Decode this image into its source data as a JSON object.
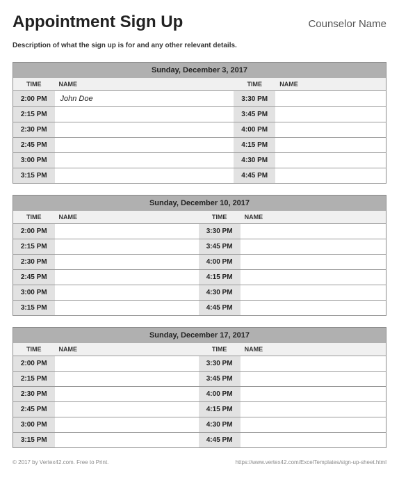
{
  "title": "Appointment Sign Up",
  "counselor": "Counselor Name",
  "description": "Description of what the sign up is for and any other relevant details.",
  "column_labels": {
    "time": "TIME",
    "name": "NAME"
  },
  "days": [
    {
      "date": "Sunday, December 3, 2017",
      "left": [
        {
          "time": "2:00 PM",
          "name": "John Doe"
        },
        {
          "time": "2:15 PM",
          "name": ""
        },
        {
          "time": "2:30 PM",
          "name": ""
        },
        {
          "time": "2:45 PM",
          "name": ""
        },
        {
          "time": "3:00 PM",
          "name": ""
        },
        {
          "time": "3:15 PM",
          "name": ""
        }
      ],
      "right": [
        {
          "time": "3:30 PM",
          "name": ""
        },
        {
          "time": "3:45 PM",
          "name": ""
        },
        {
          "time": "4:00 PM",
          "name": ""
        },
        {
          "time": "4:15 PM",
          "name": ""
        },
        {
          "time": "4:30 PM",
          "name": ""
        },
        {
          "time": "4:45 PM",
          "name": ""
        }
      ]
    },
    {
      "date": "Sunday, December 10, 2017",
      "left": [
        {
          "time": "2:00 PM",
          "name": ""
        },
        {
          "time": "2:15 PM",
          "name": ""
        },
        {
          "time": "2:30 PM",
          "name": ""
        },
        {
          "time": "2:45 PM",
          "name": ""
        },
        {
          "time": "3:00 PM",
          "name": ""
        },
        {
          "time": "3:15 PM",
          "name": ""
        }
      ],
      "right": [
        {
          "time": "3:30 PM",
          "name": ""
        },
        {
          "time": "3:45 PM",
          "name": ""
        },
        {
          "time": "4:00 PM",
          "name": ""
        },
        {
          "time": "4:15 PM",
          "name": ""
        },
        {
          "time": "4:30 PM",
          "name": ""
        },
        {
          "time": "4:45 PM",
          "name": ""
        }
      ]
    },
    {
      "date": "Sunday, December 17, 2017",
      "left": [
        {
          "time": "2:00 PM",
          "name": ""
        },
        {
          "time": "2:15 PM",
          "name": ""
        },
        {
          "time": "2:30 PM",
          "name": ""
        },
        {
          "time": "2:45 PM",
          "name": ""
        },
        {
          "time": "3:00 PM",
          "name": ""
        },
        {
          "time": "3:15 PM",
          "name": ""
        }
      ],
      "right": [
        {
          "time": "3:30 PM",
          "name": ""
        },
        {
          "time": "3:45 PM",
          "name": ""
        },
        {
          "time": "4:00 PM",
          "name": ""
        },
        {
          "time": "4:15 PM",
          "name": ""
        },
        {
          "time": "4:30 PM",
          "name": ""
        },
        {
          "time": "4:45 PM",
          "name": ""
        }
      ]
    }
  ],
  "footer": {
    "left": "© 2017 by Vertex42.com. Free to Print.",
    "right": "https://www.vertex42.com/ExcelTemplates/sign-up-sheet.html"
  },
  "colors": {
    "date_header_bg": "#b0b0b0",
    "col_head_bg": "#f0f0f0",
    "time_cell_bg": "#e2e2e2",
    "border": "#888888",
    "row_border": "#999999"
  }
}
